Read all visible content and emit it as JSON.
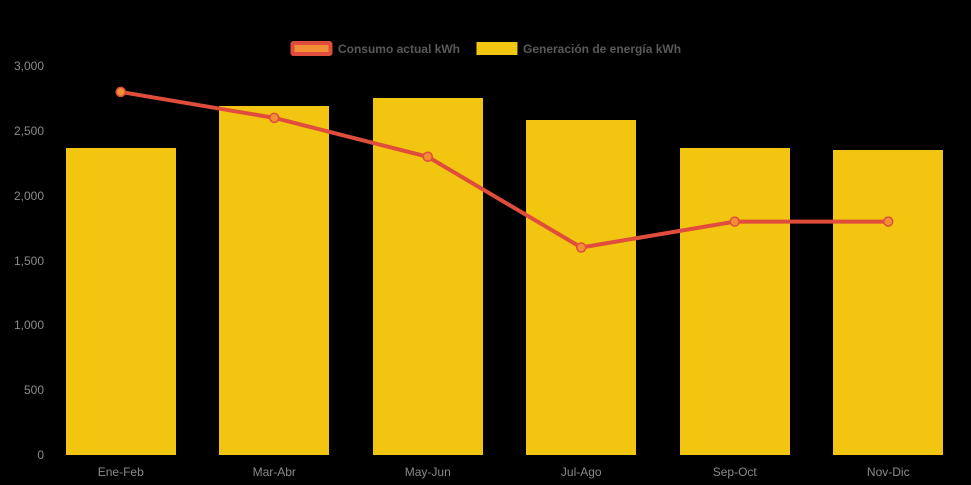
{
  "chart_data": {
    "type": "combo",
    "title": "",
    "categories": [
      "Ene-Feb",
      "Mar-Abr",
      "May-Jun",
      "Jul-Ago",
      "Sep-Oct",
      "Nov-Dic"
    ],
    "series": [
      {
        "name": "Consumo actual kWh",
        "type": "line",
        "color": "#E04D3C",
        "marker_color": "#F28E33",
        "values": [
          2800,
          2600,
          2300,
          1600,
          1800,
          1800
        ]
      },
      {
        "name": "Generación de energía kWh",
        "type": "column",
        "color": "#F2C511",
        "values": [
          2370,
          2690,
          2750,
          2580,
          2370,
          2350
        ]
      }
    ],
    "ylim": [
      0,
      3000
    ],
    "y_tick_values": [
      3000,
      2500,
      2000,
      1500,
      1000,
      500,
      0
    ],
    "y_tick_labels": [
      "3,000",
      "2,500",
      "2,000",
      "1,500",
      "1,000",
      "500",
      "0"
    ],
    "xlabel": "",
    "ylabel": "",
    "grid": false,
    "legend_position": "top-center",
    "background_color": "#000000",
    "axis_label_color": "#8A8A8A",
    "legend_text_color": "#595959"
  }
}
